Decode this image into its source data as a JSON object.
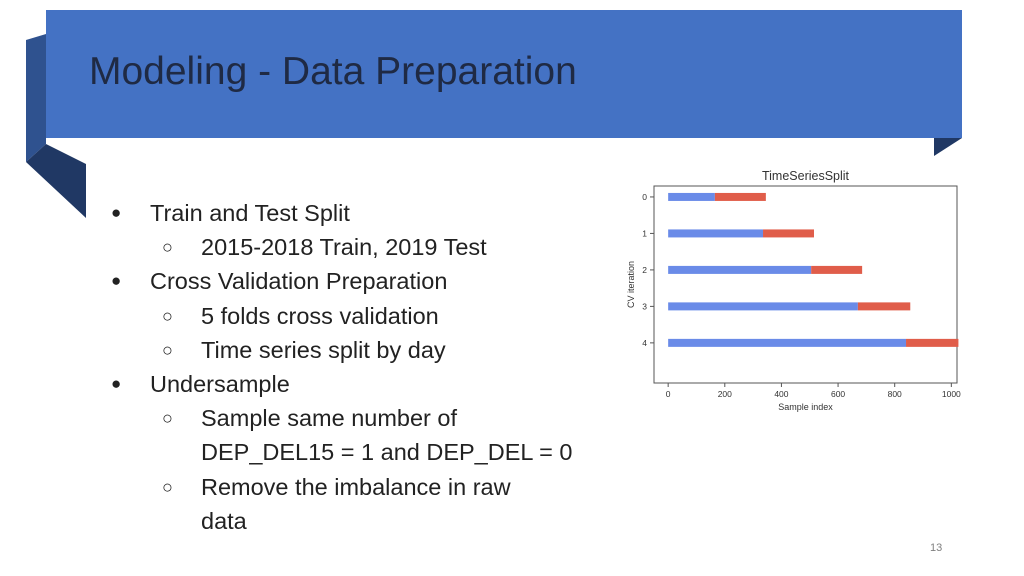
{
  "slide": {
    "title": "Modeling - Data Preparation",
    "page_number": "13",
    "colors": {
      "header": "#4472c4",
      "header_shade": "#2f528f",
      "header_dark": "#203864"
    }
  },
  "bullets": [
    {
      "level": 1,
      "marker": "●",
      "text": "Train and Test Split"
    },
    {
      "level": 2,
      "marker": "○",
      "text": "2015-2018 Train, 2019 Test"
    },
    {
      "level": 1,
      "marker": "●",
      "text": "Cross Validation Preparation"
    },
    {
      "level": 2,
      "marker": "○",
      "text": "5 folds cross validation"
    },
    {
      "level": 2,
      "marker": "○",
      "text": "Time series split by day"
    },
    {
      "level": 1,
      "marker": "●",
      "text": "Undersample"
    },
    {
      "level": 2,
      "marker": "○",
      "text": "Sample same number of"
    },
    {
      "level": 2,
      "marker": "",
      "text": "DEP_DEL15 = 1 and DEP_DEL = 0"
    },
    {
      "level": 2,
      "marker": "○",
      "text": "Remove the imbalance in raw"
    },
    {
      "level": 2,
      "marker": "",
      "text": "data"
    }
  ],
  "chart_data": {
    "type": "bar",
    "title": "TimeSeriesSplit",
    "xlabel": "Sample index",
    "ylabel": "CV iteration",
    "xlim": [
      -50,
      1020
    ],
    "ylim": [
      -0.3,
      5.1
    ],
    "y_inverted": true,
    "xticks": [
      0,
      200,
      400,
      600,
      800,
      1000
    ],
    "yticks": [
      0,
      1,
      2,
      3,
      4
    ],
    "series": [
      {
        "colour": "#6a8be8",
        "segments": [
          [
            0,
            165
          ],
          [
            0,
            335
          ],
          [
            0,
            505
          ],
          [
            0,
            670
          ],
          [
            0,
            840
          ]
        ]
      },
      {
        "colour": "#e05d4a",
        "segments": [
          [
            165,
            345
          ],
          [
            335,
            515
          ],
          [
            505,
            685
          ],
          [
            670,
            855
          ],
          [
            840,
            1025
          ]
        ]
      }
    ]
  }
}
